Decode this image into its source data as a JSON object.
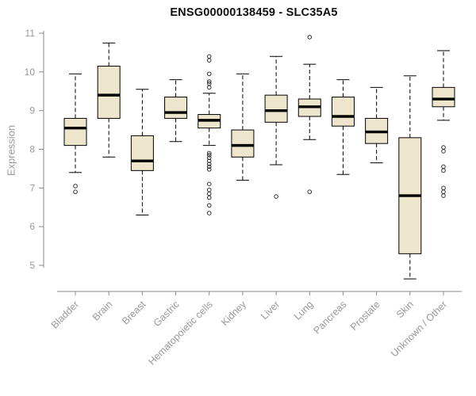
{
  "chart_data": {
    "type": "boxplot",
    "title": "ENSG00000138459 - SLC35A5",
    "ylabel": "Expression",
    "xlabel": "",
    "ylim": [
      5,
      11
    ],
    "yticks": [
      5,
      6,
      7,
      8,
      9,
      10,
      11
    ],
    "grid": false,
    "legend": "none",
    "box_fill_color": "#EDE5CC",
    "box_stroke_color": "#000000",
    "median_color": "#000000",
    "axis_color": "#888888",
    "label_color": "#999999",
    "outlier_color": "#333333",
    "categories": [
      "Bladder",
      "Brain",
      "Breast",
      "Gastric",
      "Hematopoietic cells",
      "Kidney",
      "Liver",
      "Lung",
      "Pancreas",
      "Prostate",
      "Skin",
      "Unknown / Other"
    ],
    "series": [
      {
        "category": "Bladder",
        "whisker_low": 7.4,
        "q1": 8.1,
        "median": 8.55,
        "q3": 8.8,
        "whisker_high": 9.95,
        "outliers": [
          7.05,
          6.9
        ]
      },
      {
        "category": "Brain",
        "whisker_low": 7.8,
        "q1": 8.8,
        "median": 9.4,
        "q3": 10.15,
        "whisker_high": 10.75,
        "outliers": []
      },
      {
        "category": "Breast",
        "whisker_low": 6.3,
        "q1": 7.45,
        "median": 7.7,
        "q3": 8.35,
        "whisker_high": 9.55,
        "outliers": []
      },
      {
        "category": "Gastric",
        "whisker_low": 8.2,
        "q1": 8.8,
        "median": 8.95,
        "q3": 9.35,
        "whisker_high": 9.8,
        "outliers": []
      },
      {
        "category": "Hematopoietic cells",
        "whisker_low": 8.1,
        "q1": 8.55,
        "median": 8.75,
        "q3": 8.9,
        "whisker_high": 9.45,
        "outliers": [
          10.4,
          10.3,
          9.95,
          9.75,
          9.7,
          9.6,
          7.9,
          7.85,
          7.78,
          7.7,
          7.62,
          7.55,
          7.48,
          7.1,
          6.95,
          6.85,
          6.75,
          6.55,
          6.35
        ]
      },
      {
        "category": "Kidney",
        "whisker_low": 7.2,
        "q1": 7.8,
        "median": 8.1,
        "q3": 8.5,
        "whisker_high": 9.95,
        "outliers": []
      },
      {
        "category": "Liver",
        "whisker_low": 7.6,
        "q1": 8.7,
        "median": 9.0,
        "q3": 9.4,
        "whisker_high": 10.4,
        "outliers": [
          6.78
        ]
      },
      {
        "category": "Lung",
        "whisker_low": 8.25,
        "q1": 8.85,
        "median": 9.1,
        "q3": 9.3,
        "whisker_high": 10.2,
        "outliers": [
          10.9,
          6.9
        ]
      },
      {
        "category": "Pancreas",
        "whisker_low": 7.35,
        "q1": 8.6,
        "median": 8.85,
        "q3": 9.35,
        "whisker_high": 9.8,
        "outliers": []
      },
      {
        "category": "Prostate",
        "whisker_low": 7.65,
        "q1": 8.15,
        "median": 8.45,
        "q3": 8.8,
        "whisker_high": 9.6,
        "outliers": []
      },
      {
        "category": "Skin",
        "whisker_low": 4.65,
        "q1": 5.3,
        "median": 6.8,
        "q3": 8.3,
        "whisker_high": 9.9,
        "outliers": []
      },
      {
        "category": "Unknown / Other",
        "whisker_low": 8.75,
        "q1": 9.1,
        "median": 9.3,
        "q3": 9.6,
        "whisker_high": 10.55,
        "outliers": [
          8.05,
          7.95,
          7.55,
          7.45,
          7.0,
          6.9,
          6.8
        ]
      }
    ]
  }
}
